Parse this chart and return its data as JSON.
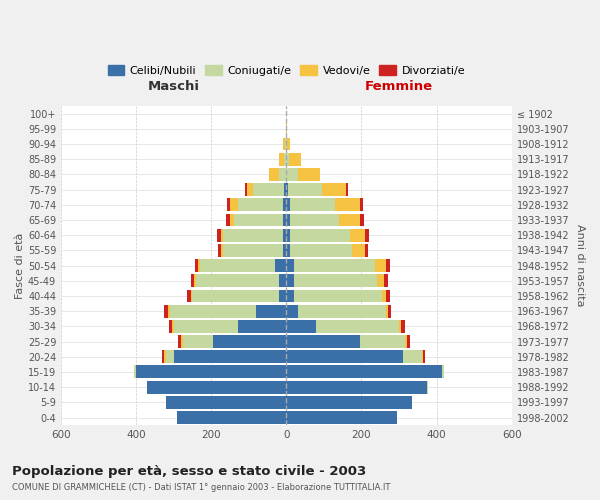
{
  "age_groups": [
    "0-4",
    "5-9",
    "10-14",
    "15-19",
    "20-24",
    "25-29",
    "30-34",
    "35-39",
    "40-44",
    "45-49",
    "50-54",
    "55-59",
    "60-64",
    "65-69",
    "70-74",
    "75-79",
    "80-84",
    "85-89",
    "90-94",
    "95-99",
    "100+"
  ],
  "birth_years": [
    "1998-2002",
    "1993-1997",
    "1988-1992",
    "1983-1987",
    "1978-1982",
    "1973-1977",
    "1968-1972",
    "1963-1967",
    "1958-1962",
    "1953-1957",
    "1948-1952",
    "1943-1947",
    "1938-1942",
    "1933-1937",
    "1928-1932",
    "1923-1927",
    "1918-1922",
    "1913-1917",
    "1908-1912",
    "1903-1907",
    "≤ 1902"
  ],
  "males": {
    "celibe": [
      290,
      320,
      370,
      400,
      300,
      195,
      130,
      80,
      20,
      20,
      30,
      10,
      10,
      10,
      10,
      5,
      0,
      0,
      0,
      0,
      0
    ],
    "coniugato": [
      0,
      0,
      2,
      5,
      20,
      80,
      170,
      230,
      230,
      220,
      200,
      160,
      160,
      130,
      120,
      85,
      20,
      5,
      3,
      0,
      0
    ],
    "vedovo": [
      0,
      0,
      0,
      0,
      5,
      5,
      5,
      5,
      5,
      5,
      5,
      5,
      5,
      10,
      20,
      15,
      25,
      15,
      5,
      2,
      0
    ],
    "divorziato": [
      0,
      0,
      0,
      0,
      5,
      8,
      8,
      10,
      10,
      10,
      8,
      8,
      10,
      10,
      8,
      5,
      0,
      0,
      0,
      0,
      0
    ]
  },
  "females": {
    "nubile": [
      295,
      335,
      375,
      415,
      310,
      195,
      80,
      30,
      20,
      20,
      20,
      10,
      10,
      10,
      10,
      5,
      0,
      0,
      0,
      0,
      0
    ],
    "coniugata": [
      0,
      0,
      2,
      5,
      50,
      120,
      220,
      235,
      235,
      220,
      215,
      165,
      160,
      130,
      120,
      90,
      30,
      8,
      2,
      0,
      0
    ],
    "vedova": [
      0,
      0,
      0,
      0,
      5,
      5,
      5,
      5,
      10,
      20,
      30,
      35,
      40,
      55,
      65,
      65,
      60,
      30,
      8,
      2,
      0
    ],
    "divorziata": [
      0,
      0,
      0,
      0,
      5,
      10,
      10,
      8,
      10,
      10,
      12,
      8,
      10,
      12,
      8,
      5,
      0,
      0,
      0,
      0,
      0
    ]
  },
  "colors": {
    "celibe": "#3a6fa8",
    "coniugato": "#c5d8a0",
    "vedovo": "#f5c242",
    "divorziato": "#cc2222"
  },
  "legend_labels": [
    "Celibi/Nubili",
    "Coniugati/e",
    "Vedovi/e",
    "Divorziati/e"
  ],
  "title": "Popolazione per età, sesso e stato civile - 2003",
  "subtitle": "COMUNE DI GRAMMICHELE (CT) - Dati ISTAT 1° gennaio 2003 - Elaborazione TUTTITALIA.IT",
  "xlabel_maschi": "Maschi",
  "xlabel_femmine": "Femmine",
  "ylabel_left": "Fasce di età",
  "ylabel_right": "Anni di nascita",
  "xlim": 600,
  "bg_color": "#f0f0f0",
  "plot_bg": "#ffffff"
}
